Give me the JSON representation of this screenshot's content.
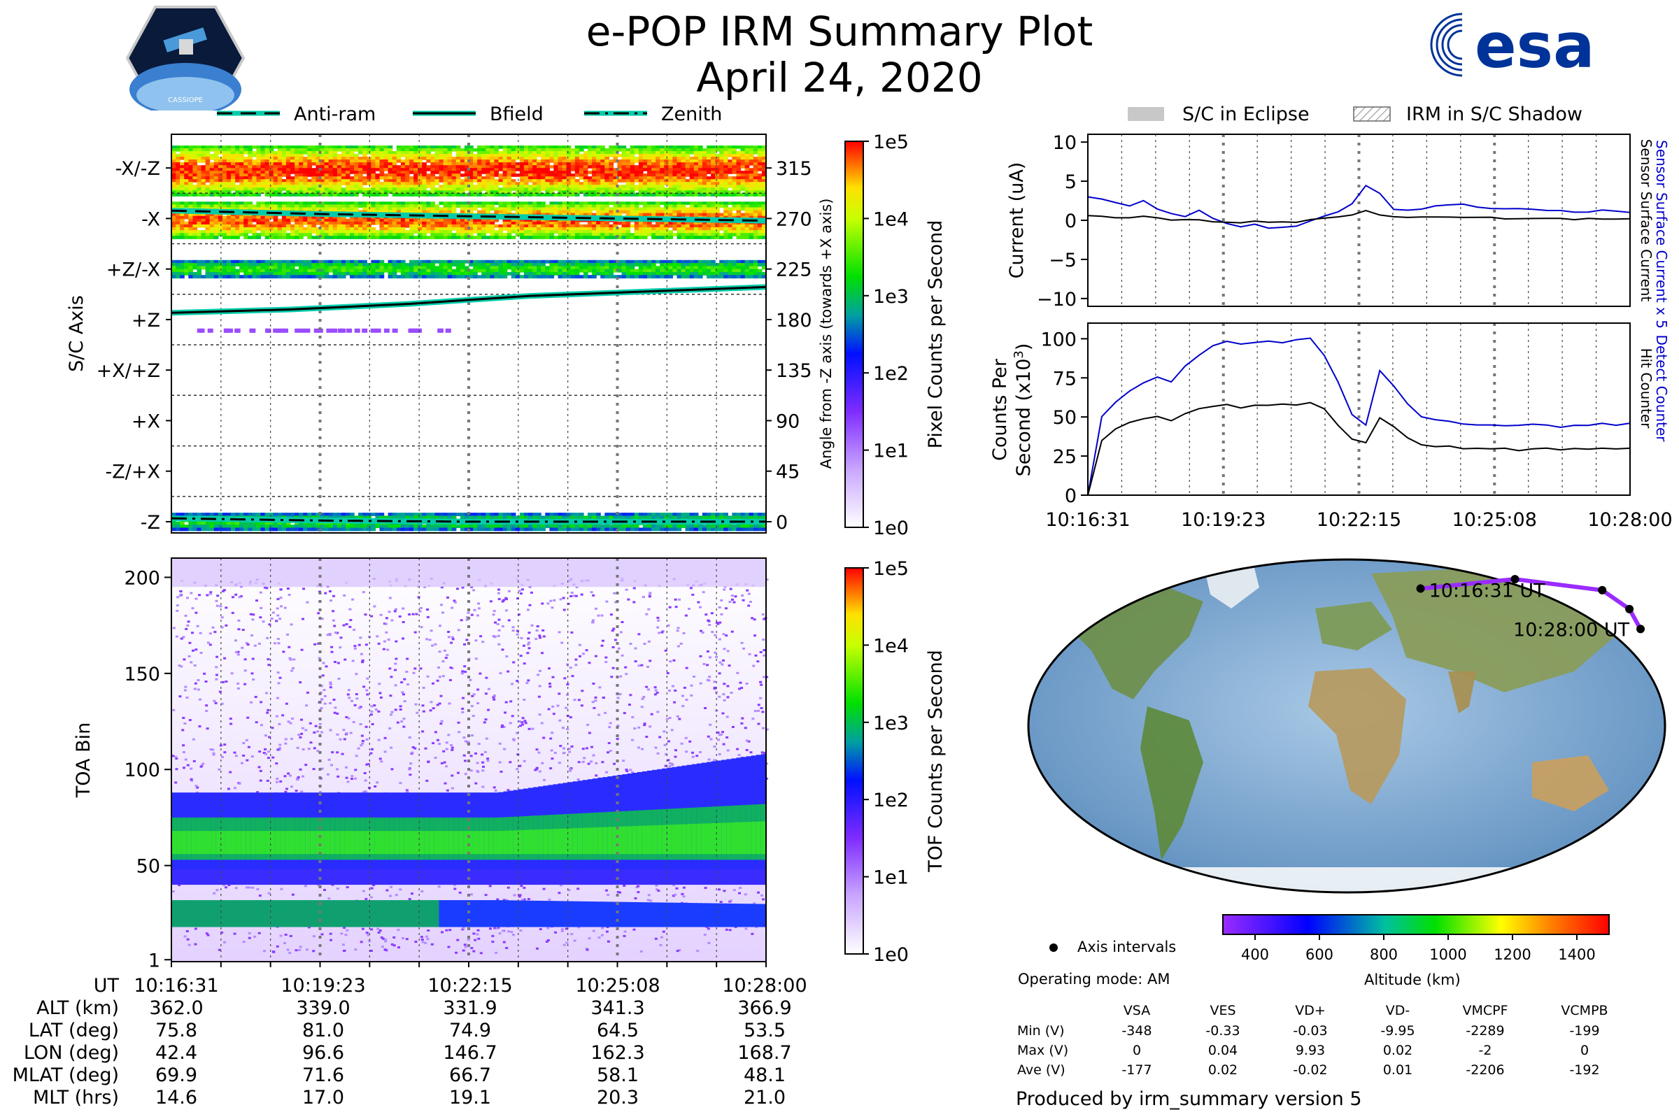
{
  "title": {
    "line1": "e-POP IRM Summary Plot",
    "line2": "April 24, 2020"
  },
  "logo": {
    "cassiope_text": "CASSIOPE",
    "esa_text": "esa"
  },
  "colors": {
    "blue": "#0000cc",
    "black": "#000000",
    "teal": "#00ccaa",
    "grid": "#555555"
  },
  "legend_left": [
    {
      "label": "Anti-ram",
      "style": "dashed"
    },
    {
      "label": "Bfield",
      "style": "solid"
    },
    {
      "label": "Zenith",
      "style": "dashdot"
    }
  ],
  "legend_right": [
    {
      "label": "S/C in Eclipse",
      "style": "filled"
    },
    {
      "label": "IRM in S/C Shadow",
      "style": "hatched"
    }
  ],
  "chart_data": [
    {
      "type": "heatmap",
      "name": "sc-axis-spectrogram",
      "ylabel": "S/C Axis",
      "ylabel_right": "Angle from -Z axis (towards +X axis)",
      "y_categories": [
        "-X/-Z",
        "-X",
        "+Z/-X",
        "+Z",
        "+X/+Z",
        "+X",
        "-Z/+X",
        "-Z"
      ],
      "y_right_ticks": [
        "315",
        "270",
        "225",
        "180",
        "135",
        "90",
        "45",
        "0"
      ],
      "colorbar": {
        "label": "Pixel Counts per Second",
        "ticks": [
          "1e5",
          "1e4",
          "1e3",
          "1e2",
          "1e1",
          "1e0"
        ]
      },
      "bands": [
        {
          "angle_from": 290,
          "angle_to": 335,
          "intensity": 3.2
        },
        {
          "angle_from": 252,
          "angle_to": 285,
          "intensity": 3.1
        },
        {
          "angle_from": 217,
          "angle_to": 233,
          "intensity": 1.8
        },
        {
          "angle_from": -8,
          "angle_to": 8,
          "intensity": 1.7
        }
      ],
      "lines": {
        "bfield": [
          [
            0,
            186
          ],
          [
            0.2,
            189
          ],
          [
            0.4,
            194
          ],
          [
            0.6,
            201
          ],
          [
            0.8,
            205
          ],
          [
            1,
            209
          ]
        ],
        "antiram": [
          [
            0,
            277
          ],
          [
            0.25,
            274
          ],
          [
            0.5,
            272
          ],
          [
            0.75,
            270
          ],
          [
            1,
            268
          ]
        ],
        "zenith": [
          [
            0,
            3
          ],
          [
            0.25,
            1
          ],
          [
            0.5,
            0
          ],
          [
            0.75,
            0
          ],
          [
            1,
            0
          ]
        ]
      },
      "ylim": [
        -10,
        345
      ]
    },
    {
      "type": "heatmap",
      "name": "toa-spectrogram",
      "ylabel": "TOA Bin",
      "yticks": [
        "200",
        "150",
        "100",
        "50",
        "1"
      ],
      "ytick_values": [
        200,
        150,
        100,
        50,
        1
      ],
      "ylim": [
        0,
        210
      ],
      "colorbar": {
        "label": "TOF Counts per Second",
        "ticks": [
          "1e5",
          "1e4",
          "1e3",
          "1e2",
          "1e1",
          "1e0"
        ]
      },
      "core_band": {
        "start": [
          55,
          75
        ],
        "end": [
          58,
          82
        ]
      },
      "low_band": {
        "center": 24
      }
    },
    {
      "type": "line",
      "name": "current-plot",
      "ylabel": "Current (uA)",
      "ylabel_right_blue": "Sensor Surface Current x 5",
      "ylabel_right_black": "Sensor Surface Current",
      "yticks": [
        "10",
        "5",
        "0",
        "−5",
        "−10"
      ],
      "ytick_values": [
        10,
        5,
        0,
        -5,
        -10
      ],
      "ylim": [
        -11,
        11
      ],
      "series": [
        {
          "name": "Sensor Surface Current x 5",
          "color": "#0000cc",
          "values": [
            3,
            2.6,
            2.2,
            1.8,
            2.4,
            1.5,
            0.8,
            0.5,
            1.2,
            0.3,
            -0.5,
            -0.8,
            -0.6,
            -1,
            -0.9,
            -0.7,
            -0.2,
            0.5,
            1,
            2,
            4.5,
            3.5,
            1.5,
            1.2,
            1.5,
            1.8,
            2,
            2.1,
            1.8,
            1.6,
            1.5,
            1.6,
            1.4,
            1.2,
            1.3,
            1.1,
            1.0,
            1.2,
            1.1,
            1.0
          ]
        },
        {
          "name": "Sensor Surface Current",
          "color": "#000000",
          "values": [
            0.6,
            0.5,
            0.4,
            0.3,
            0.4,
            0.2,
            0.1,
            0,
            0.1,
            -0.1,
            -0.2,
            -0.3,
            -0.2,
            -0.3,
            -0.2,
            -0.2,
            0,
            0.2,
            0.5,
            0.8,
            1.2,
            0.8,
            0.4,
            0.3,
            0.3,
            0.4,
            0.4,
            0.4,
            0.3,
            0.3,
            0.3,
            0.3,
            0.3,
            0.2,
            0.2,
            0.2,
            0.2,
            0.2,
            0.2,
            0.2
          ]
        }
      ]
    },
    {
      "type": "line",
      "name": "counts-plot",
      "ylabel": "Counts Per\nSecond (x10³)",
      "ylabel_line1": "Counts Per",
      "ylabel_line2": "Second (x10",
      "ylabel_sup": "3",
      "ylabel_right_blue": "Detect Counter",
      "ylabel_right_black": "Hit Counter",
      "yticks": [
        "100",
        "75",
        "50",
        "25",
        "0"
      ],
      "ytick_values": [
        100,
        75,
        50,
        25,
        0
      ],
      "ylim": [
        0,
        110
      ],
      "xticks": [
        "10:16:31",
        "10:19:23",
        "10:22:15",
        "10:25:08",
        "10:28:00"
      ],
      "series": [
        {
          "name": "Detect Counter",
          "color": "#0000cc",
          "values": [
            0,
            50,
            60,
            66,
            72,
            76,
            72,
            82,
            90,
            96,
            98,
            96,
            97,
            98,
            98,
            99,
            100,
            90,
            72,
            52,
            45,
            80,
            70,
            58,
            50,
            48,
            47,
            46,
            45,
            45,
            45,
            44,
            45,
            45,
            44,
            45,
            45,
            46,
            45,
            46
          ]
        },
        {
          "name": "Hit Counter",
          "color": "#000000",
          "values": [
            0,
            35,
            42,
            46,
            49,
            50,
            47,
            52,
            55,
            57,
            58,
            56,
            57,
            57,
            58,
            58,
            59,
            55,
            45,
            36,
            34,
            50,
            44,
            36,
            32,
            31,
            31,
            30,
            30,
            30,
            30,
            29,
            30,
            30,
            29,
            30,
            30,
            30,
            30,
            30
          ]
        }
      ]
    },
    {
      "type": "scatter",
      "name": "orbit-map",
      "labels": {
        "start": "10:16:31 UT",
        "end": "10:28:00 UT"
      },
      "axis_interval_label": "Axis intervals",
      "operating_mode": "Operating mode: AM",
      "colorbar": {
        "label": "Altitude (km)",
        "ticks": [
          "400",
          "600",
          "800",
          "1000",
          "1200",
          "1400"
        ],
        "tick_values": [
          400,
          600,
          800,
          1000,
          1200,
          1400
        ],
        "range": [
          300,
          1500
        ]
      },
      "track_points": [
        [
          42.4,
          75.8
        ],
        [
          96.6,
          81.0
        ],
        [
          146.7,
          74.9
        ],
        [
          162.3,
          64.5
        ],
        [
          168.7,
          53.5
        ]
      ]
    }
  ],
  "ut_table": {
    "row_labels": [
      "UT",
      "ALT (km)",
      "LAT (deg)",
      "LON (deg)",
      "MLAT (deg)",
      "MLT (hrs)"
    ],
    "columns": [
      [
        "10:16:31",
        "362.0",
        "75.8",
        "42.4",
        "69.9",
        "14.6"
      ],
      [
        "10:19:23",
        "339.0",
        "81.0",
        "96.6",
        "71.6",
        "17.0"
      ],
      [
        "10:22:15",
        "331.9",
        "74.9",
        "146.7",
        "66.7",
        "19.1"
      ],
      [
        "10:25:08",
        "341.3",
        "64.5",
        "162.3",
        "58.1",
        "20.3"
      ],
      [
        "10:28:00",
        "366.9",
        "53.5",
        "168.7",
        "48.1",
        "21.0"
      ]
    ]
  },
  "voltages": {
    "headers": [
      "VSA",
      "VES",
      "VD+",
      "VD-",
      "VMCPF",
      "VCMPB"
    ],
    "rows": [
      {
        "label": "Min (V)",
        "values": [
          "-348",
          "-0.33",
          "-0.03",
          "-9.95",
          "-2289",
          "-199"
        ]
      },
      {
        "label": "Max (V)",
        "values": [
          "0",
          "0.04",
          "9.93",
          "0.02",
          "-2",
          "0"
        ]
      },
      {
        "label": "Ave (V)",
        "values": [
          "-177",
          "0.02",
          "-0.02",
          "0.01",
          "-2206",
          "-192"
        ]
      }
    ]
  },
  "footer": "Produced by irm_summary version 5"
}
